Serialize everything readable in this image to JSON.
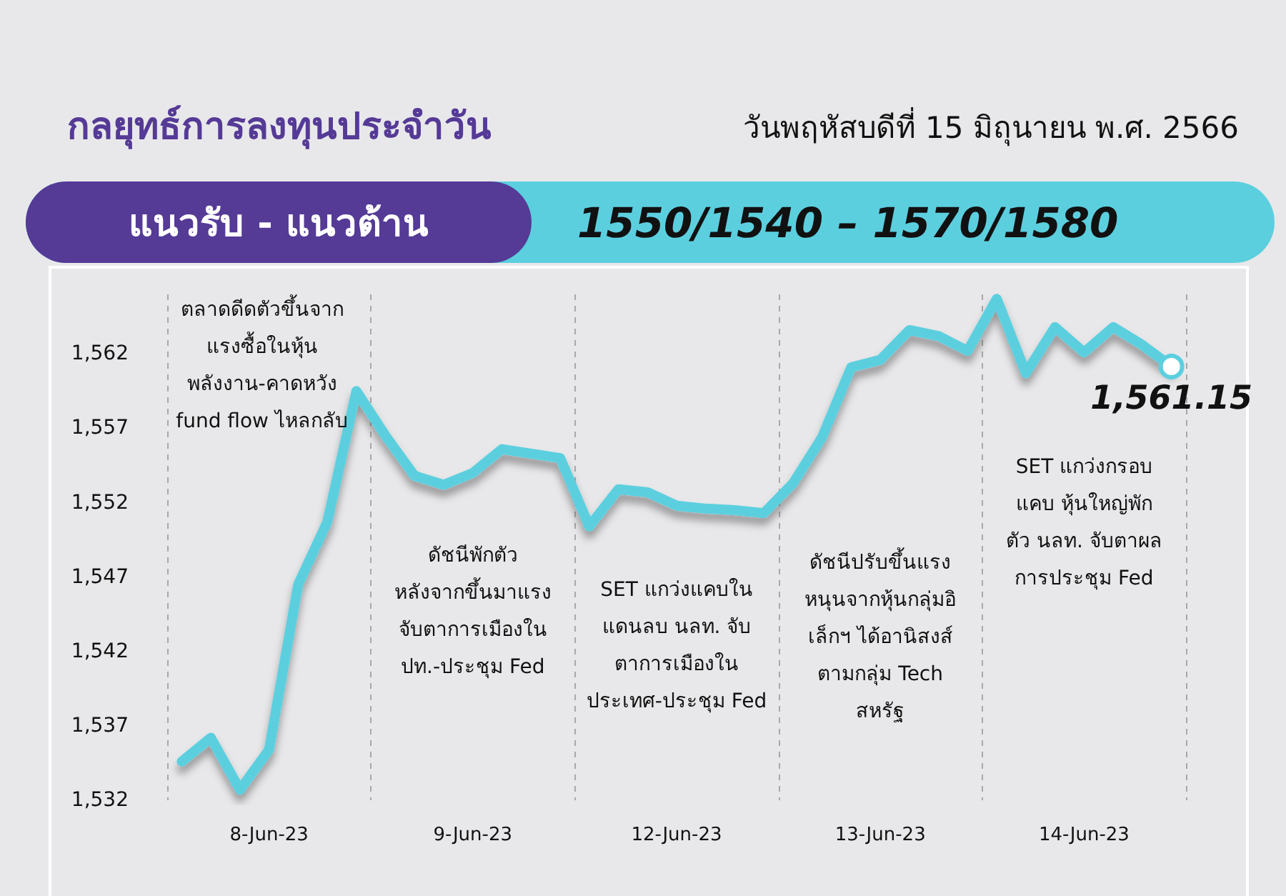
{
  "chart_data": {
    "type": "line",
    "title": "กลยุทธ์การลงทุนประจำวัน",
    "subtitle": "วันพฤหัสบดีที่ 15 มิถุนายน พ.ศ. 2566",
    "categories": [
      null,
      null,
      null,
      "8-Jun-23",
      null,
      null,
      null,
      null,
      null,
      null,
      "9-Jun-23",
      null,
      null,
      null,
      null,
      null,
      null,
      "12-Jun-23",
      null,
      null,
      null,
      null,
      null,
      null,
      "13-Jun-23",
      null,
      null,
      null,
      null,
      null,
      null,
      "14-Jun-23",
      null,
      null,
      null
    ],
    "series": [
      {
        "color": "#5ccfdf",
        "values": [
          1534.6,
          1536.2,
          1532.7,
          1535.4,
          1546.5,
          1550.7,
          1559.5,
          1556.5,
          1553.8,
          1553.2,
          1554.0,
          1555.6,
          1555.3,
          1555.0,
          1550.4,
          1552.9,
          1552.7,
          1551.8,
          1551.6,
          1551.5,
          1551.3,
          1553.3,
          1556.4,
          1561.1,
          1561.6,
          1563.6,
          1563.2,
          1562.2,
          1565.7,
          1560.7,
          1563.8,
          1562.1,
          1563.8,
          1562.6,
          1561.15
        ],
        "value_labels": [
          null,
          null,
          null,
          null,
          null,
          null,
          null,
          null,
          null,
          null,
          null,
          null,
          null,
          null,
          null,
          null,
          null,
          null,
          null,
          null,
          null,
          null,
          null,
          null,
          null,
          null,
          null,
          null,
          null,
          null,
          null,
          null,
          null,
          null,
          "1,561.15"
        ]
      }
    ],
    "ylim": [
      1532,
      1566
    ],
    "yticks": [
      {
        "value": 1532,
        "label": "1,532"
      },
      {
        "value": 1537,
        "label": "1,537"
      },
      {
        "value": 1542,
        "label": "1,542"
      },
      {
        "value": 1547,
        "label": "1,547"
      },
      {
        "value": 1552,
        "label": "1,552"
      },
      {
        "value": 1557,
        "label": "1,557"
      },
      {
        "value": 1562,
        "label": "1,562"
      }
    ],
    "grid": "x",
    "annotations": [
      "แนวรับ - แนวต้าน",
      "1550/1540 – 1570/1580",
      "ตลาดดีดตัวขึ้นจาก\nแรงซื้อในหุ้น\nพลังงาน-คาดหวัง\nfund flow ไหลกลับ",
      "ดัชนีพักตัว\nหลังจากขึ้นมาแรง\nจับตาการเมืองใน\nปท.-ประชุม Fed",
      "SET แกว่งแคบใน\nแดนลบ นลท. จับ\nตาการเมืองใน\nประเทศ-ประชุม Fed",
      "ดัชนีปรับขึ้นแรง\nหนุนจากหุ้นกลุ่มอิ\nเล็กฯ ได้อานิสงส์\nตามกลุ่ม Tech\nสหรัฐ",
      "SET แกว่งกรอบ\nแคบ หุ้นใหญ่พัก\nตัว นลท. จับตาผล\nการประชุม Fed"
    ]
  }
}
